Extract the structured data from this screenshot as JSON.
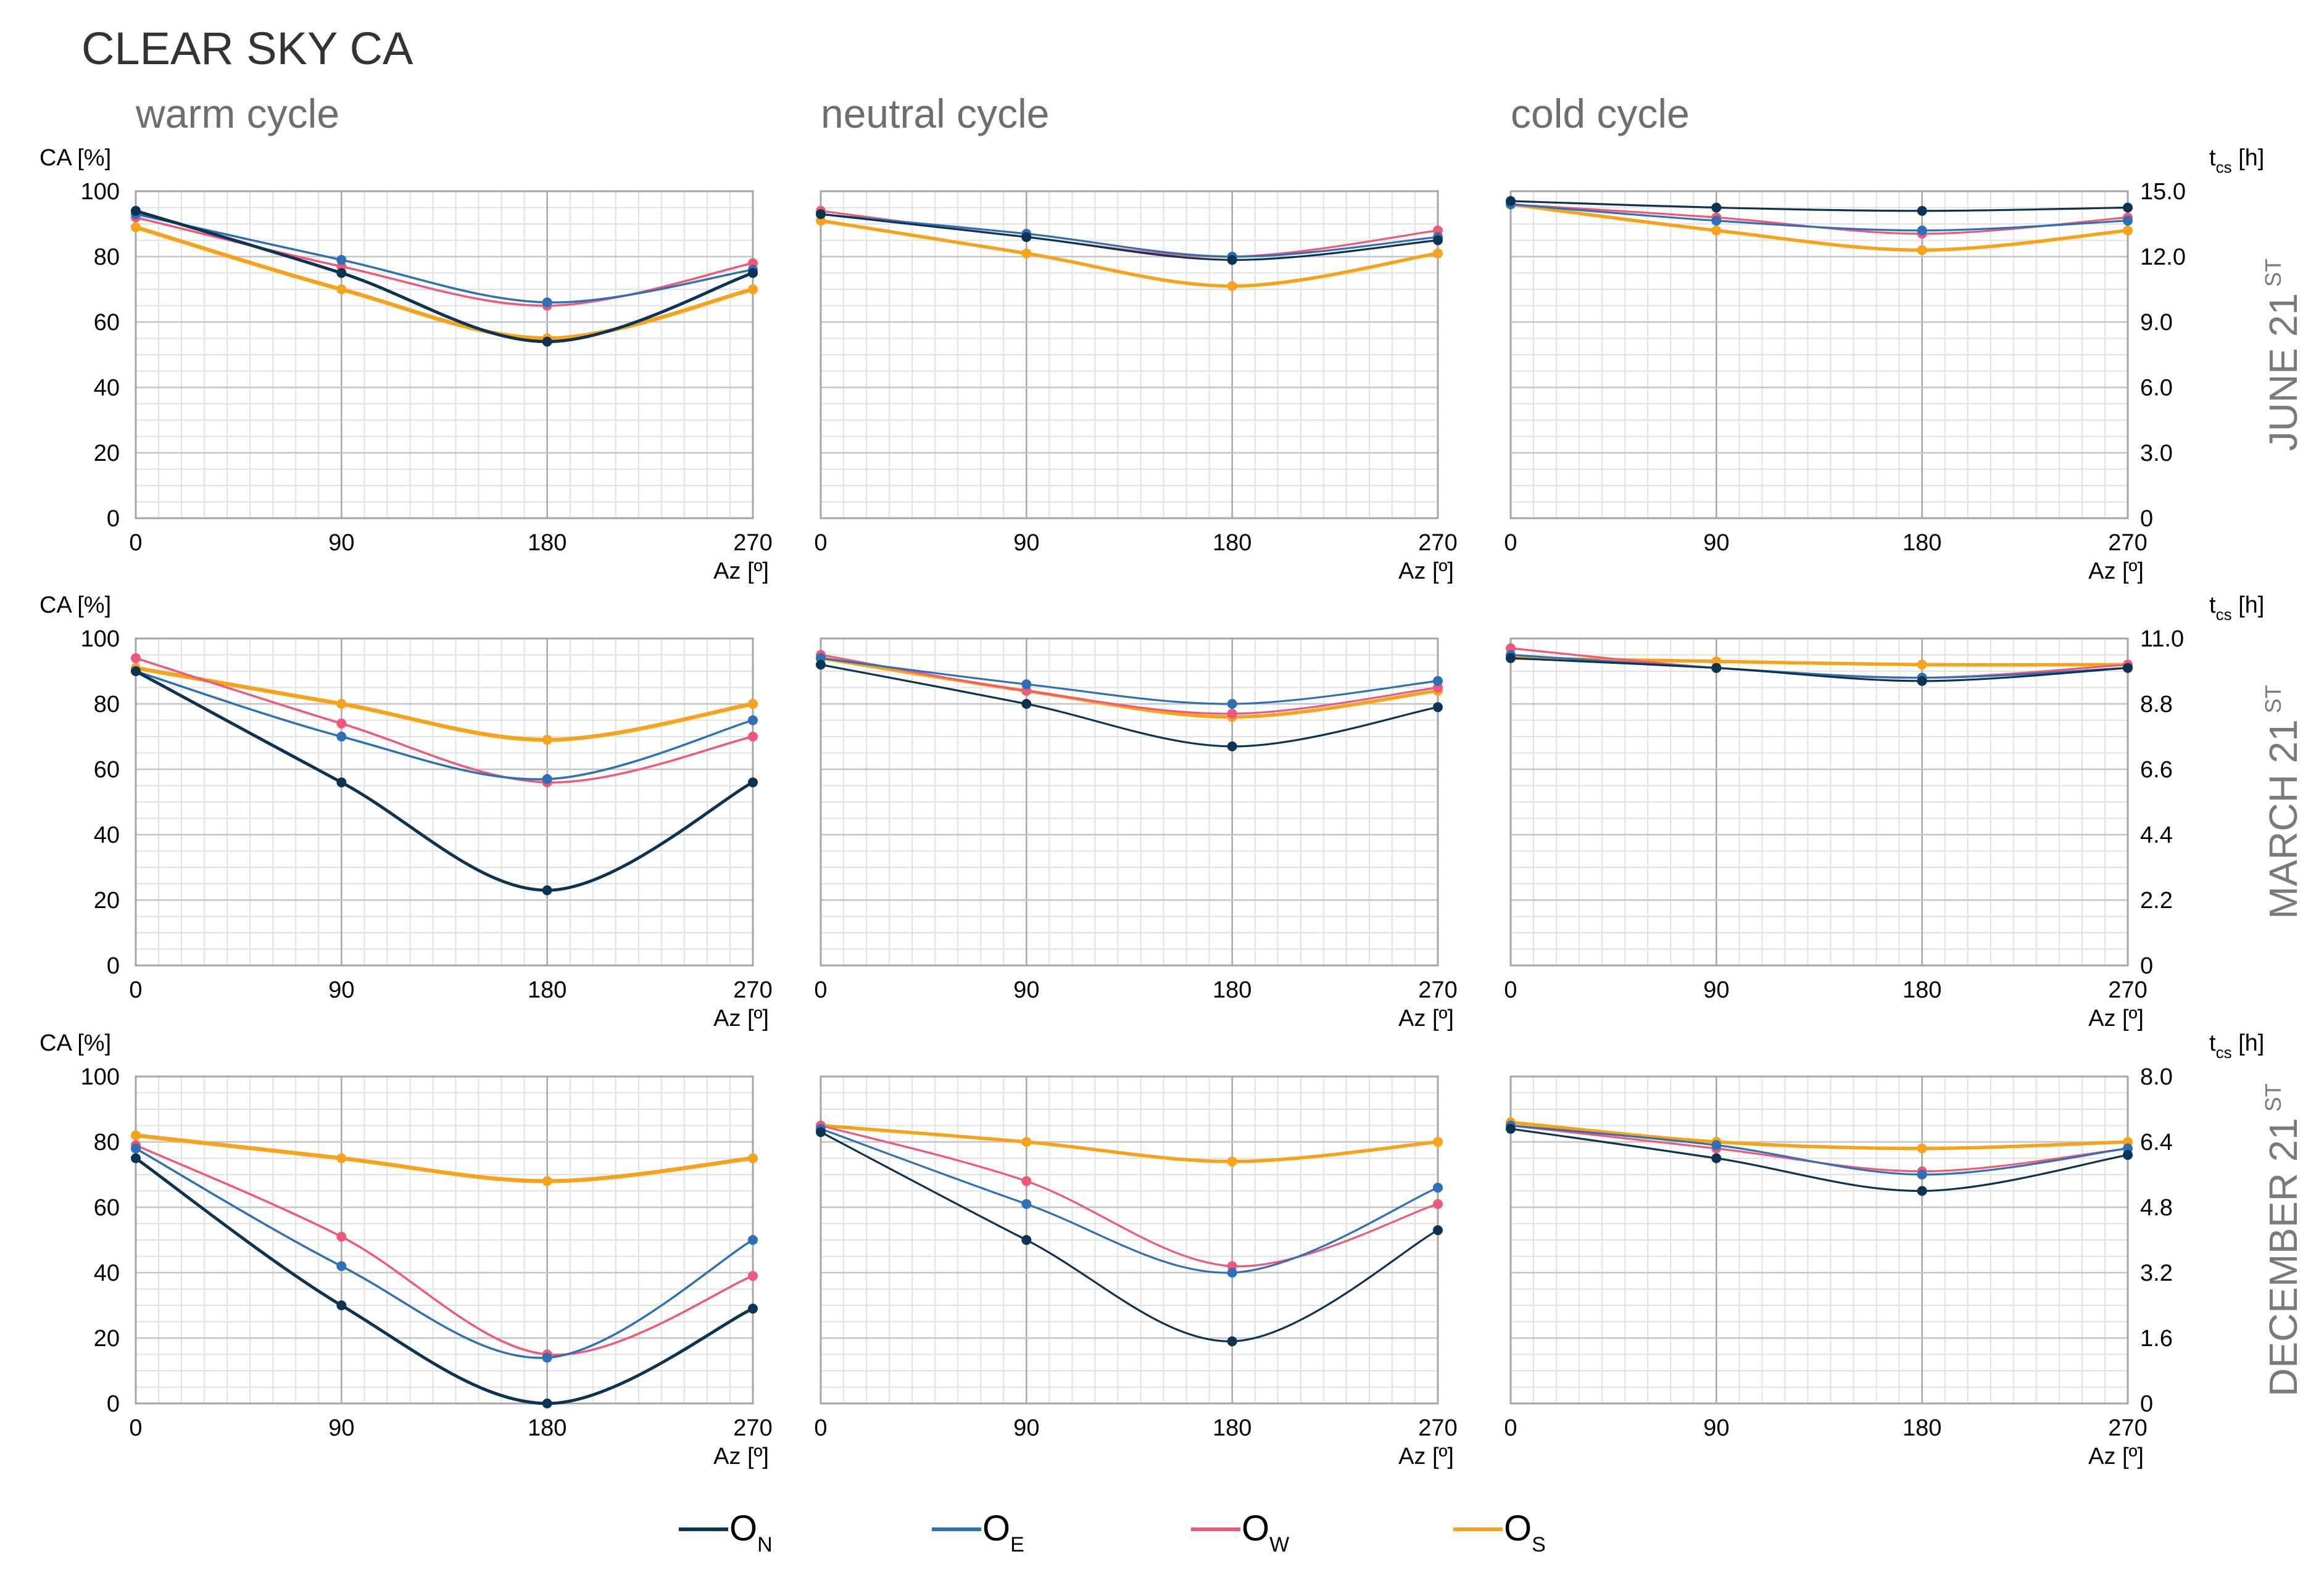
{
  "title": "CLEAR SKY CA",
  "columns": [
    "warm cycle",
    "neutral cycle",
    "cold cycle"
  ],
  "rows": [
    "JUNE 21",
    "MARCH 21",
    "DECEMBER 21"
  ],
  "row_superscript": "ST",
  "left_axis_label": "CA [%]",
  "right_axis_label_main": "t",
  "right_axis_label_sub": "cs",
  "right_axis_label_unit": " [h]",
  "x_axis_label": "Az [º]",
  "x_ticks": [
    0,
    90,
    180,
    270
  ],
  "y_ticks": [
    0,
    20,
    40,
    60,
    80,
    100
  ],
  "right_ticks": [
    [
      "0",
      "3.0",
      "6.0",
      "9.0",
      "12.0",
      "15.0"
    ],
    [
      "0",
      "2.2",
      "4.4",
      "6.6",
      "8.8",
      "11.0"
    ],
    [
      "0",
      "1.6",
      "3.2",
      "4.8",
      "6.4",
      "8.0"
    ]
  ],
  "legend": [
    {
      "main": "O",
      "sub": "N",
      "color": "#0d3352"
    },
    {
      "main": "O",
      "sub": "E",
      "color": "#2f6fb5"
    },
    {
      "main": "O",
      "sub": "W",
      "color": "#f0587a"
    },
    {
      "main": "O",
      "sub": "S",
      "color": "#f7a21b"
    }
  ],
  "chart_data": [
    {
      "type": "line",
      "row": "JUNE 21",
      "column": "warm cycle",
      "x": [
        0,
        90,
        180,
        270
      ],
      "xlim": [
        0,
        270
      ],
      "ylim": [
        0,
        100
      ],
      "xlabel": "Az [º]",
      "ylabel": "CA [%]",
      "series": [
        {
          "name": "ON",
          "values": [
            94,
            75,
            54,
            75
          ]
        },
        {
          "name": "OE",
          "values": [
            93,
            79,
            66,
            76
          ]
        },
        {
          "name": "OW",
          "values": [
            92,
            77,
            65,
            78
          ]
        },
        {
          "name": "OS",
          "values": [
            89,
            70,
            55,
            70
          ]
        }
      ]
    },
    {
      "type": "line",
      "row": "JUNE 21",
      "column": "neutral cycle",
      "x": [
        0,
        90,
        180,
        270
      ],
      "xlim": [
        0,
        270
      ],
      "ylim": [
        0,
        100
      ],
      "xlabel": "Az [º]",
      "series": [
        {
          "name": "ON",
          "values": [
            93,
            86,
            79,
            85
          ]
        },
        {
          "name": "OE",
          "values": [
            93,
            87,
            80,
            86
          ]
        },
        {
          "name": "OW",
          "values": [
            94,
            86,
            80,
            88
          ]
        },
        {
          "name": "OS",
          "values": [
            91,
            81,
            71,
            81
          ]
        }
      ]
    },
    {
      "type": "line",
      "row": "JUNE 21",
      "column": "cold cycle",
      "x": [
        0,
        90,
        180,
        270
      ],
      "xlim": [
        0,
        270
      ],
      "ylim": [
        0,
        100
      ],
      "xlabel": "Az [º]",
      "y2label": "tcs [h]",
      "series": [
        {
          "name": "ON",
          "values": [
            97,
            95,
            94,
            95
          ]
        },
        {
          "name": "OE",
          "values": [
            96,
            91,
            88,
            91
          ]
        },
        {
          "name": "OW",
          "values": [
            96,
            92,
            87,
            92
          ]
        },
        {
          "name": "OS",
          "values": [
            96,
            88,
            82,
            88
          ]
        }
      ]
    },
    {
      "type": "line",
      "row": "MARCH 21",
      "column": "warm cycle",
      "x": [
        0,
        90,
        180,
        270
      ],
      "xlim": [
        0,
        270
      ],
      "ylim": [
        0,
        100
      ],
      "xlabel": "Az [º]",
      "ylabel": "CA [%]",
      "series": [
        {
          "name": "ON",
          "values": [
            90,
            56,
            23,
            56
          ]
        },
        {
          "name": "OE",
          "values": [
            90,
            70,
            57,
            75
          ]
        },
        {
          "name": "OW",
          "values": [
            94,
            74,
            56,
            70
          ]
        },
        {
          "name": "OS",
          "values": [
            91,
            80,
            69,
            80
          ]
        }
      ]
    },
    {
      "type": "line",
      "row": "MARCH 21",
      "column": "neutral cycle",
      "x": [
        0,
        90,
        180,
        270
      ],
      "xlim": [
        0,
        270
      ],
      "ylim": [
        0,
        100
      ],
      "xlabel": "Az [º]",
      "series": [
        {
          "name": "ON",
          "values": [
            92,
            80,
            67,
            79
          ]
        },
        {
          "name": "OE",
          "values": [
            94,
            86,
            80,
            87
          ]
        },
        {
          "name": "OW",
          "values": [
            95,
            84,
            77,
            85
          ]
        },
        {
          "name": "OS",
          "values": [
            94,
            84,
            76,
            84
          ]
        }
      ]
    },
    {
      "type": "line",
      "row": "MARCH 21",
      "column": "cold cycle",
      "x": [
        0,
        90,
        180,
        270
      ],
      "xlim": [
        0,
        270
      ],
      "ylim": [
        0,
        100
      ],
      "xlabel": "Az [º]",
      "y2label": "tcs [h]",
      "series": [
        {
          "name": "ON",
          "values": [
            94,
            91,
            87,
            91
          ]
        },
        {
          "name": "OE",
          "values": [
            95,
            91,
            88,
            91
          ]
        },
        {
          "name": "OW",
          "values": [
            97,
            91,
            88,
            92
          ]
        },
        {
          "name": "OS",
          "values": [
            94,
            93,
            92,
            92
          ]
        }
      ]
    },
    {
      "type": "line",
      "row": "DECEMBER 21",
      "column": "warm cycle",
      "x": [
        0,
        90,
        180,
        270
      ],
      "xlim": [
        0,
        270
      ],
      "ylim": [
        0,
        100
      ],
      "xlabel": "Az [º]",
      "ylabel": "CA [%]",
      "series": [
        {
          "name": "ON",
          "values": [
            75,
            30,
            0,
            29
          ]
        },
        {
          "name": "OE",
          "values": [
            78,
            42,
            14,
            50
          ]
        },
        {
          "name": "OW",
          "values": [
            79,
            51,
            15,
            39
          ]
        },
        {
          "name": "OS",
          "values": [
            82,
            75,
            68,
            75
          ]
        }
      ]
    },
    {
      "type": "line",
      "row": "DECEMBER 21",
      "column": "neutral cycle",
      "x": [
        0,
        90,
        180,
        270
      ],
      "xlim": [
        0,
        270
      ],
      "ylim": [
        0,
        100
      ],
      "xlabel": "Az [º]",
      "series": [
        {
          "name": "ON",
          "values": [
            83,
            50,
            19,
            53
          ]
        },
        {
          "name": "OE",
          "values": [
            84,
            61,
            40,
            66
          ]
        },
        {
          "name": "OW",
          "values": [
            85,
            68,
            42,
            61
          ]
        },
        {
          "name": "OS",
          "values": [
            85,
            80,
            74,
            80
          ]
        }
      ]
    },
    {
      "type": "line",
      "row": "DECEMBER 21",
      "column": "cold cycle",
      "x": [
        0,
        90,
        180,
        270
      ],
      "xlim": [
        0,
        270
      ],
      "ylim": [
        0,
        100
      ],
      "xlabel": "Az [º]",
      "y2label": "tcs [h]",
      "series": [
        {
          "name": "ON",
          "values": [
            84,
            75,
            65,
            76
          ]
        },
        {
          "name": "OE",
          "values": [
            85,
            79,
            70,
            78
          ]
        },
        {
          "name": "OW",
          "values": [
            85,
            78,
            71,
            78
          ]
        },
        {
          "name": "OS",
          "values": [
            86,
            80,
            78,
            80
          ]
        }
      ]
    }
  ]
}
